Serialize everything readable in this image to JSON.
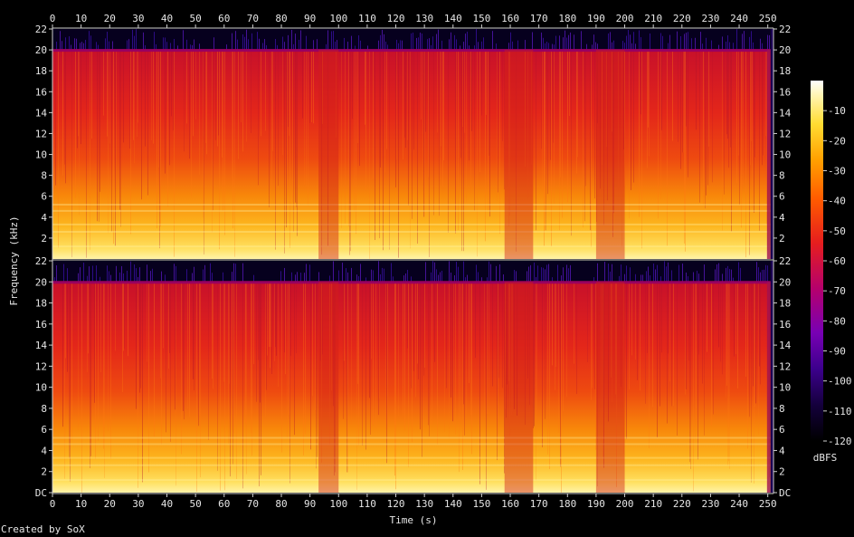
{
  "credit": "Created by SoX",
  "chart_data": {
    "type": "heatmap",
    "subtype": "spectrogram",
    "channels": 2,
    "xlabel": "Time (s)",
    "ylabel": "Frequency (kHz)",
    "xlim": [
      0,
      252
    ],
    "ylim": [
      0,
      22
    ],
    "x_ticks": [
      "0",
      "10",
      "20",
      "30",
      "40",
      "50",
      "60",
      "70",
      "80",
      "90",
      "100",
      "110",
      "120",
      "130",
      "140",
      "150",
      "160",
      "170",
      "180",
      "190",
      "200",
      "210",
      "220",
      "230",
      "240",
      "250"
    ],
    "y_ticks_top": [
      "2",
      "4",
      "6",
      "8",
      "10",
      "12",
      "14",
      "16",
      "18",
      "20",
      "22"
    ],
    "y_ticks_bottom": [
      "DC",
      "2",
      "4",
      "6",
      "8",
      "10",
      "12",
      "14",
      "16",
      "18",
      "20",
      "22"
    ],
    "colorbar": {
      "label": "dBFS",
      "range": [
        -120,
        0
      ],
      "ticks": [
        "-10",
        "-20",
        "-30",
        "-40",
        "-50",
        "-60",
        "-70",
        "-80",
        "-90",
        "-100",
        "-110",
        "-120"
      ],
      "colors": [
        "#000000",
        "#14003c",
        "#3c008c",
        "#7800b4",
        "#b4006e",
        "#e61e1e",
        "#ff5a00",
        "#ffa000",
        "#ffdc32",
        "#fff5b4",
        "#ffffff"
      ]
    },
    "content_cutoff_khz": 20,
    "quiet_regions_s": [
      [
        93,
        100
      ],
      [
        158,
        168
      ],
      [
        190,
        200
      ]
    ],
    "track_end_s": 251
  }
}
